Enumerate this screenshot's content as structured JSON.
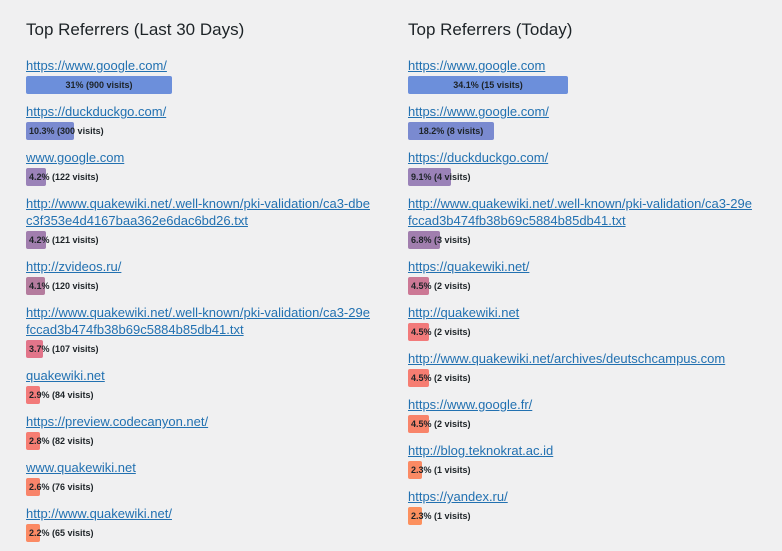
{
  "left_panel": {
    "title": "Top Referrers (Last 30 Days)",
    "items": [
      {
        "url": "https://www.google.com/",
        "pct_label": "31%",
        "visits_label": "(900 visits)",
        "fraction": 0.31,
        "color": "#6c8fdb",
        "centered": true
      },
      {
        "url": "https://duckduckgo.com/",
        "pct_label": "10.3%",
        "visits_label": "(300 visits)",
        "fraction": 0.103,
        "color": "#7a8ad0"
      },
      {
        "url": "www.google.com",
        "pct_label": "4.2%",
        "visits_label": "(122 visits)",
        "fraction": 0.042,
        "color": "#9a82b8"
      },
      {
        "url": "http://www.quakewiki.net/.well-known/pki-validation/ca3-dbec3f353e4d4167baa362e6dac6bd26.txt",
        "pct_label": "4.2%",
        "visits_label": "(121 visits)",
        "fraction": 0.042,
        "color": "#a17eae"
      },
      {
        "url": "http://zvideos.ru/",
        "pct_label": "4.1%",
        "visits_label": "(120 visits)",
        "fraction": 0.041,
        "color": "#b47c9e"
      },
      {
        "url": "http://www.quakewiki.net/.well-known/pki-validation/ca3-29efccad3b474fb38b69c5884b85db41.txt",
        "pct_label": "3.7%",
        "visits_label": "(107 visits)",
        "fraction": 0.037,
        "color": "#e2758a"
      },
      {
        "url": "quakewiki.net",
        "pct_label": "2.9%",
        "visits_label": "(84 visits)",
        "fraction": 0.029,
        "color": "#f27a7a"
      },
      {
        "url": "https://preview.codecanyon.net/",
        "pct_label": "2.8%",
        "visits_label": "(82 visits)",
        "fraction": 0.028,
        "color": "#f67d72"
      },
      {
        "url": "www.quakewiki.net",
        "pct_label": "2.6%",
        "visits_label": "(76 visits)",
        "fraction": 0.026,
        "color": "#f8846a"
      },
      {
        "url": "http://www.quakewiki.net/",
        "pct_label": "2.2%",
        "visits_label": "(65 visits)",
        "fraction": 0.022,
        "color": "#fb8a64"
      }
    ]
  },
  "right_panel": {
    "title": "Top Referrers (Today)",
    "items": [
      {
        "url": "https://www.google.com",
        "pct_label": "34.1%",
        "visits_label": "(15 visits)",
        "fraction": 0.341,
        "color": "#6c8fdb",
        "centered": true
      },
      {
        "url": "https://www.google.com/",
        "pct_label": "18.2%",
        "visits_label": "(8 visits)",
        "fraction": 0.182,
        "color": "#7a8ad0",
        "centered": true
      },
      {
        "url": "https://duckduckgo.com/",
        "pct_label": "9.1%",
        "visits_label": "(4 visits)",
        "fraction": 0.091,
        "color": "#9a82b8"
      },
      {
        "url": "http://www.quakewiki.net/.well-known/pki-validation/ca3-29efccad3b474fb38b69c5884b85db41.txt",
        "pct_label": "6.8%",
        "visits_label": "(3 visits)",
        "fraction": 0.068,
        "color": "#a17eae"
      },
      {
        "url": "https://quakewiki.net/",
        "pct_label": "4.5%",
        "visits_label": "(2 visits)",
        "fraction": 0.045,
        "color": "#cc7895"
      },
      {
        "url": "http://quakewiki.net",
        "pct_label": "4.5%",
        "visits_label": "(2 visits)",
        "fraction": 0.045,
        "color": "#f27a7a"
      },
      {
        "url": "http://www.quakewiki.net/archives/deutschcampus.com",
        "pct_label": "4.5%",
        "visits_label": "(2 visits)",
        "fraction": 0.045,
        "color": "#f67d72"
      },
      {
        "url": "https://www.google.fr/",
        "pct_label": "4.5%",
        "visits_label": "(2 visits)",
        "fraction": 0.045,
        "color": "#f8846a"
      },
      {
        "url": "http://blog.teknokrat.ac.id",
        "pct_label": "2.3%",
        "visits_label": "(1 visits)",
        "fraction": 0.023,
        "color": "#fb8a64"
      },
      {
        "url": "https://yandex.ru/",
        "pct_label": "2.3%",
        "visits_label": "(1 visits)",
        "fraction": 0.023,
        "color": "#fc905e"
      }
    ]
  }
}
